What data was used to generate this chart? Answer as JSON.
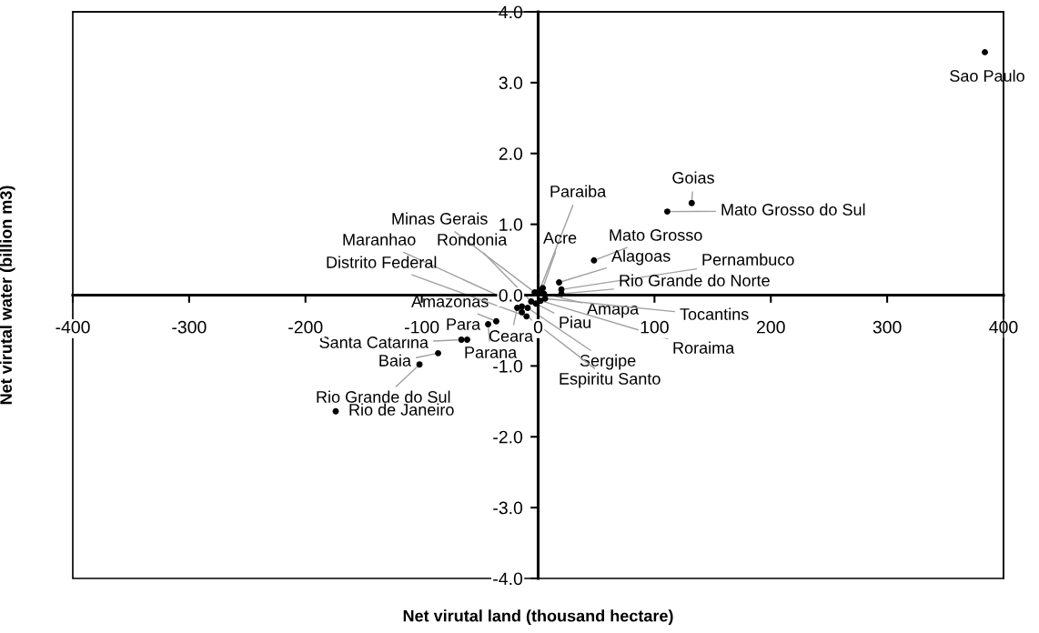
{
  "chart_data": {
    "type": "scatter",
    "xlabel": "Net virutal land (thousand hectare)",
    "ylabel": "Net virutal water (billion m3)",
    "x": [
      384,
      132,
      111,
      48,
      18,
      20,
      20,
      -174,
      -102,
      -86,
      -66,
      -61,
      -43,
      -36,
      -18,
      -2,
      -9,
      -14,
      -3,
      -14,
      -6,
      -10,
      1,
      4,
      5,
      6,
      2
    ],
    "series": [
      {
        "color": "#000000",
        "values": [
          3.43,
          1.3,
          1.18,
          0.49,
          0.18,
          0.08,
          0.02,
          -1.64,
          -0.98,
          -0.82,
          -0.63,
          -0.63,
          -0.41,
          -0.37,
          -0.18,
          -0.12,
          -0.18,
          -0.24,
          0.04,
          -0.16,
          -0.09,
          -0.3,
          0.06,
          0.1,
          0.02,
          -0.05,
          -0.08
        ]
      }
    ],
    "annotations": [
      {
        "text": "Sao Paulo",
        "x": 384,
        "y": 3.43
      },
      {
        "text": "Goias",
        "x": 132,
        "y": 1.3
      },
      {
        "text": "Mato Grosso do Sul",
        "x": 111,
        "y": 1.18
      },
      {
        "text": "Mato Grosso",
        "x": 48,
        "y": 0.49
      },
      {
        "text": "Alagoas",
        "x": 18,
        "y": 0.18
      },
      {
        "text": "Pernambuco",
        "x": 20,
        "y": 0.08
      },
      {
        "text": "Rio Grande do Norte",
        "x": 20,
        "y": 0.02
      },
      {
        "text": "Rio de Janeiro",
        "x": -174,
        "y": -1.64
      },
      {
        "text": "Rio Grande do Sul",
        "x": -102,
        "y": -0.98
      },
      {
        "text": "Baia",
        "x": -86,
        "y": -0.82
      },
      {
        "text": "Santa Catarina",
        "x": -66,
        "y": -0.63
      },
      {
        "text": "Para",
        "x": -61,
        "y": -0.63
      },
      {
        "text": "Parana",
        "x": -43,
        "y": -0.41
      },
      {
        "text": "Amazonas",
        "x": -36,
        "y": -0.37
      },
      {
        "text": "Ceara",
        "x": -18,
        "y": -0.18
      },
      {
        "text": "Piau",
        "x": -2,
        "y": -0.12
      },
      {
        "text": "Sergipe",
        "x": -9,
        "y": -0.18
      },
      {
        "text": "Espiritu Santo",
        "x": -14,
        "y": -0.24
      },
      {
        "text": "Minas Gerais",
        "x": -3,
        "y": 0.04
      },
      {
        "text": "Maranhao",
        "x": -14,
        "y": -0.16
      },
      {
        "text": "Rondonia",
        "x": -6,
        "y": -0.09
      },
      {
        "text": "Distrito Federal",
        "x": -10,
        "y": -0.3
      },
      {
        "text": "Paraiba",
        "x": 1,
        "y": 0.06
      },
      {
        "text": "Acre",
        "x": 4,
        "y": 0.1
      },
      {
        "text": "Amapa",
        "x": 5,
        "y": 0.02
      },
      {
        "text": "Tocantins",
        "x": 6,
        "y": -0.05
      },
      {
        "text": "Roraima",
        "x": 2,
        "y": -0.08
      }
    ],
    "xlim": [
      -400,
      400
    ],
    "ylim": [
      -4.0,
      4.0
    ],
    "xticks": [
      -400,
      -300,
      -200,
      -100,
      0,
      100,
      200,
      300,
      400
    ],
    "yticks": [
      {
        "value": -4,
        "label": "-4.0"
      },
      {
        "value": -3,
        "label": "-3.0"
      },
      {
        "value": -2,
        "label": "-2.0"
      },
      {
        "value": -1,
        "label": "-1.0"
      },
      {
        "value": 0,
        "label": "0.0"
      },
      {
        "value": 1,
        "label": "1.0"
      },
      {
        "value": 2,
        "label": "2.0"
      },
      {
        "value": 3,
        "label": "3.0"
      },
      {
        "value": 4,
        "label": "4.0"
      }
    ],
    "marker": "circle",
    "grid": false,
    "legend": false
  }
}
